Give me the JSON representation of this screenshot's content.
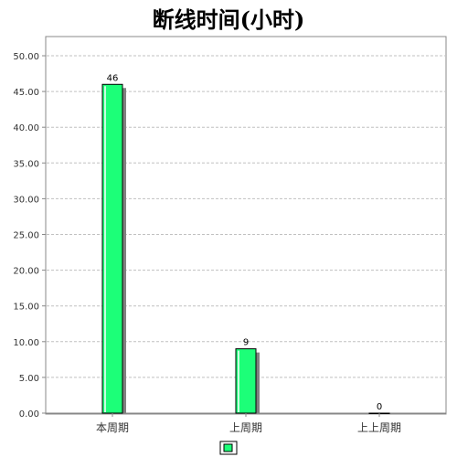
{
  "chart_data": {
    "type": "bar",
    "title": "断线时间(小时)",
    "categories": [
      "本周期",
      "上周期",
      "上上周期"
    ],
    "values": [
      46,
      9,
      0
    ],
    "data_labels": [
      "46",
      "9",
      "0"
    ],
    "y_ticks": [
      "0.00",
      "5.00",
      "10.00",
      "15.00",
      "20.00",
      "25.00",
      "30.00",
      "35.00",
      "40.00",
      "45.00",
      "50.00"
    ],
    "ylim": [
      0,
      52.5
    ],
    "grid": true,
    "legend": "bottom-center",
    "colors": {
      "bar": "#1cff78",
      "bar_stroke": "#000000",
      "shadow": "#808080",
      "grid": "#c0c0c0"
    }
  }
}
